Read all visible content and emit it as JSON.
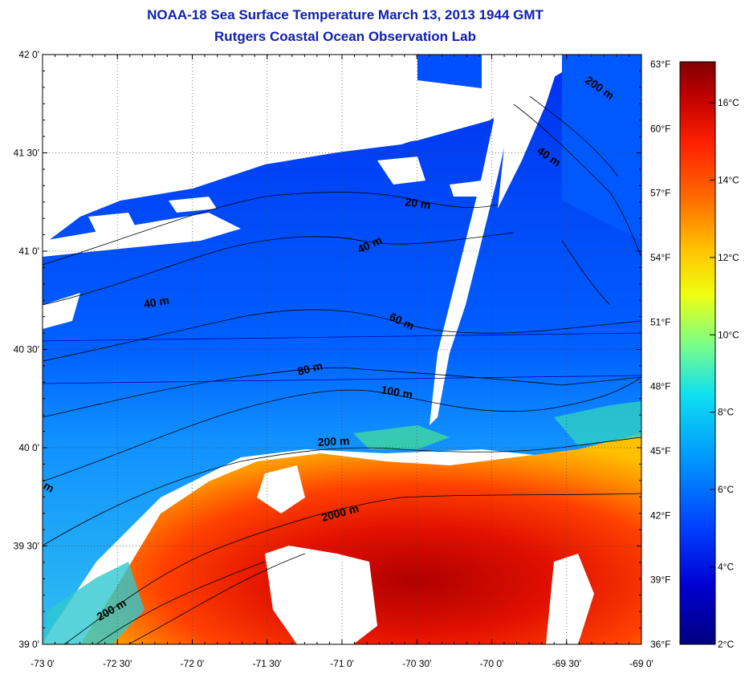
{
  "title": "NOAA-18 Sea Surface Temperature March 13, 2013 1944 GMT",
  "subtitle": "Rutgers Coastal Ocean Observation Lab",
  "lat_ticks": [
    "42 0'",
    "41 30'",
    "41 0'",
    "40 30'",
    "40 0'",
    "39 30'",
    "39 0'"
  ],
  "lon_ticks": [
    "-73 0'",
    "-72 30'",
    "-72 0'",
    "-71 30'",
    "-71 0'",
    "-70 30'",
    "-70 0'",
    "-69 30'",
    "-69 0'"
  ],
  "fahrenheit_ticks": [
    "63°F",
    "60°F",
    "57°F",
    "54°F",
    "51°F",
    "48°F",
    "45°F",
    "42°F",
    "39°F",
    "36°F"
  ],
  "celsius_ticks": [
    "16°C",
    "14°C",
    "12°C",
    "10°C",
    "8°C",
    "6°C",
    "4°C",
    "2°C"
  ],
  "contour_labels": [
    "20 m",
    "40 m",
    "40 m",
    "40 m",
    "60 m",
    "80 m",
    "100 m",
    "200 m",
    "2000 m",
    "200 m",
    "200 m",
    "m"
  ],
  "colorbar_colors": [
    "#800000",
    "#c00000",
    "#ff2000",
    "#ff7000",
    "#ffc000",
    "#f0ff10",
    "#80ff80",
    "#10e0f0",
    "#0090ff",
    "#0030ff",
    "#0000c0",
    "#000080"
  ]
}
